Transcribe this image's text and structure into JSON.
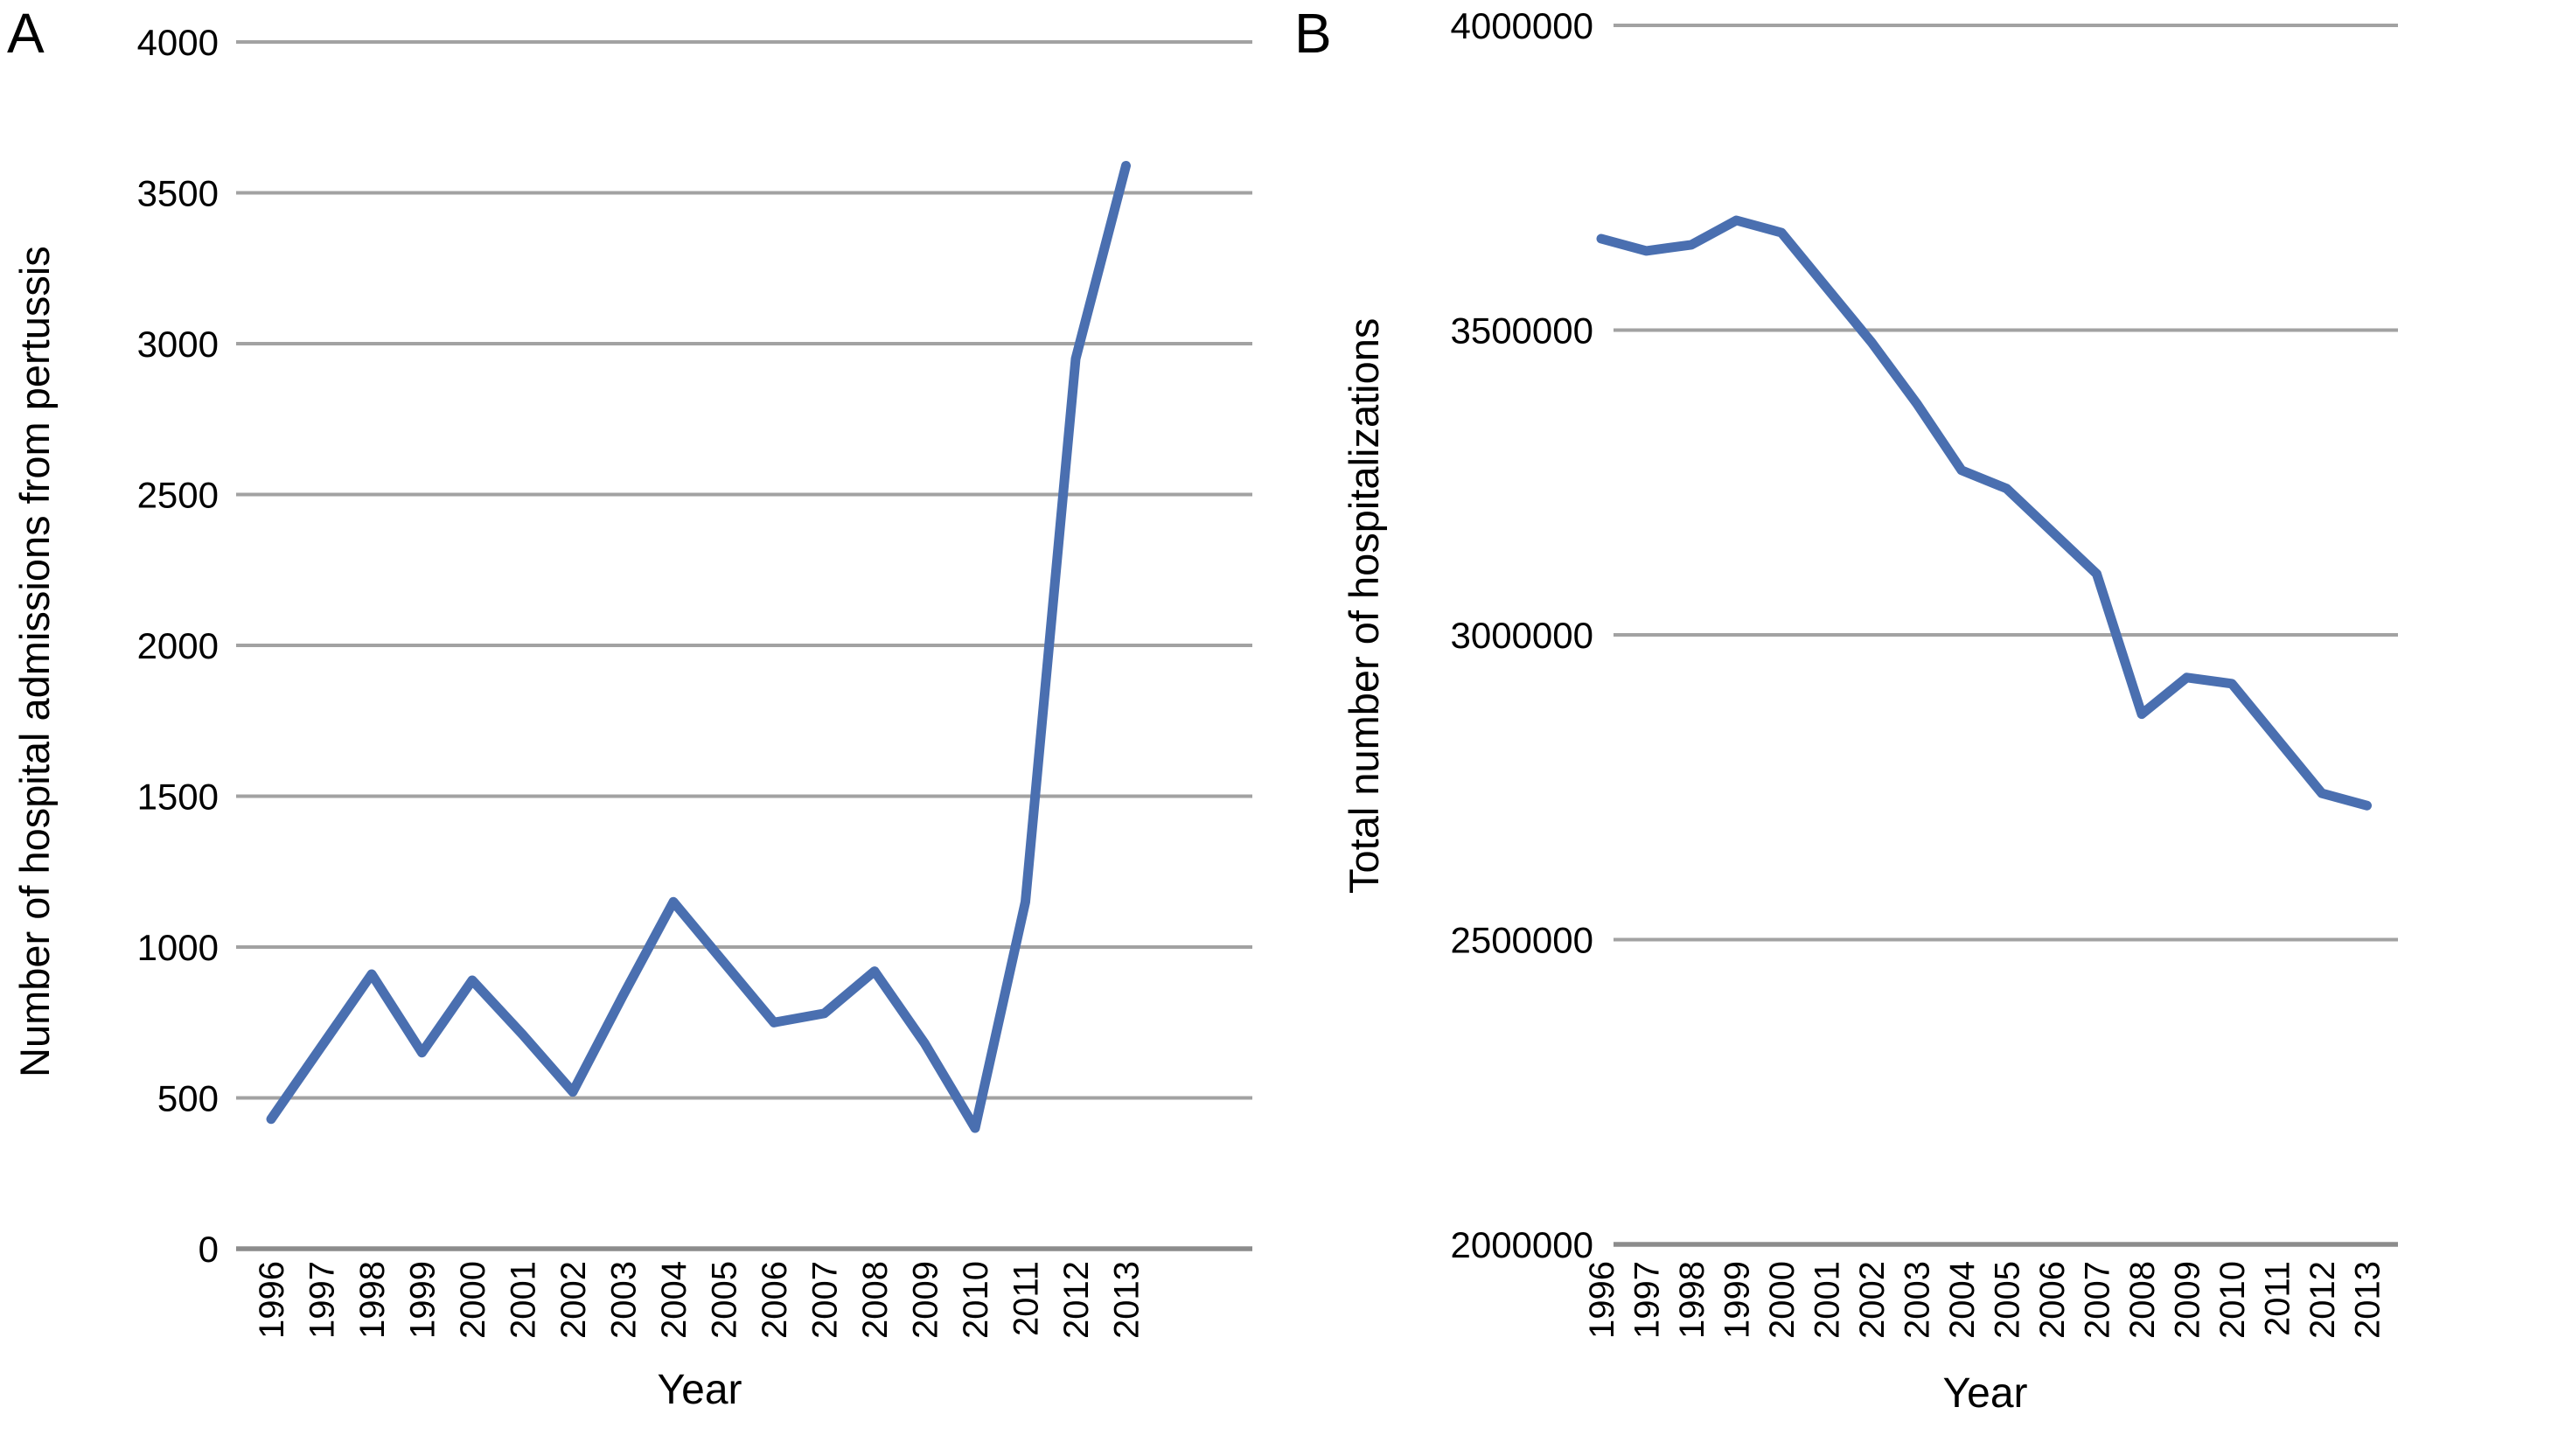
{
  "figure_background": "#ffffff",
  "text_color": "#000000",
  "chart_data": [
    {
      "type": "line",
      "panel_label": "A",
      "title": "",
      "ylabel": "Number of hospital admissions from pertussis",
      "xlabel": "Year",
      "legend": "none",
      "grid": "horizontal-only",
      "line_color": "#4a6fb0",
      "gridline_color": "#a2a2a2",
      "axisline_color": "#8c8c8c",
      "ylim": [
        0,
        4000
      ],
      "y_ticks": [
        0,
        500,
        1000,
        1500,
        2000,
        2500,
        3000,
        3500,
        4000
      ],
      "x": [
        1996,
        1997,
        1998,
        1999,
        2000,
        2001,
        2002,
        2003,
        2004,
        2005,
        2006,
        2007,
        2008,
        2009,
        2010,
        2011,
        2012,
        2013
      ],
      "x_tick_labels": [
        "1996",
        "1997",
        "1998",
        "1999",
        "2000",
        "2001",
        "2002",
        "2003",
        "2004",
        "2005",
        "2006",
        "2007",
        "2008",
        "2009",
        "2010",
        "2011",
        "2012",
        "2013"
      ],
      "series": [
        {
          "name": "Hospital admissions from pertussis",
          "values": [
            430,
            670,
            910,
            650,
            890,
            710,
            520,
            840,
            1150,
            950,
            750,
            780,
            920,
            680,
            400,
            1150,
            2950,
            3590
          ]
        }
      ]
    },
    {
      "type": "line",
      "panel_label": "B",
      "title": "",
      "ylabel": "Total number of hospitalizations",
      "xlabel": "Year",
      "legend": "none",
      "grid": "horizontal-only",
      "line_color": "#4a6fb0",
      "gridline_color": "#a2a2a2",
      "axisline_color": "#8c8c8c",
      "ylim": [
        2000000,
        4000000
      ],
      "y_ticks": [
        2000000,
        2500000,
        3000000,
        3500000,
        4000000
      ],
      "x": [
        1996,
        1997,
        1998,
        1999,
        2000,
        2001,
        2002,
        2003,
        2004,
        2005,
        2006,
        2007,
        2008,
        2009,
        2010,
        2011,
        2012,
        2013
      ],
      "x_tick_labels": [
        "1996",
        "1997",
        "1998",
        "1999",
        "2000",
        "2001",
        "2002",
        "2003",
        "2004",
        "2005",
        "2006",
        "2007",
        "2008",
        "2009",
        "2010",
        "2011",
        "2012",
        "2013"
      ],
      "series": [
        {
          "name": "Total hospitalizations",
          "values": [
            3650000,
            3630000,
            3640000,
            3680000,
            3660000,
            3570000,
            3480000,
            3380000,
            3270000,
            3240000,
            3170000,
            3100000,
            2870000,
            2930000,
            2920000,
            2830000,
            2740000,
            2720000
          ]
        }
      ]
    }
  ]
}
